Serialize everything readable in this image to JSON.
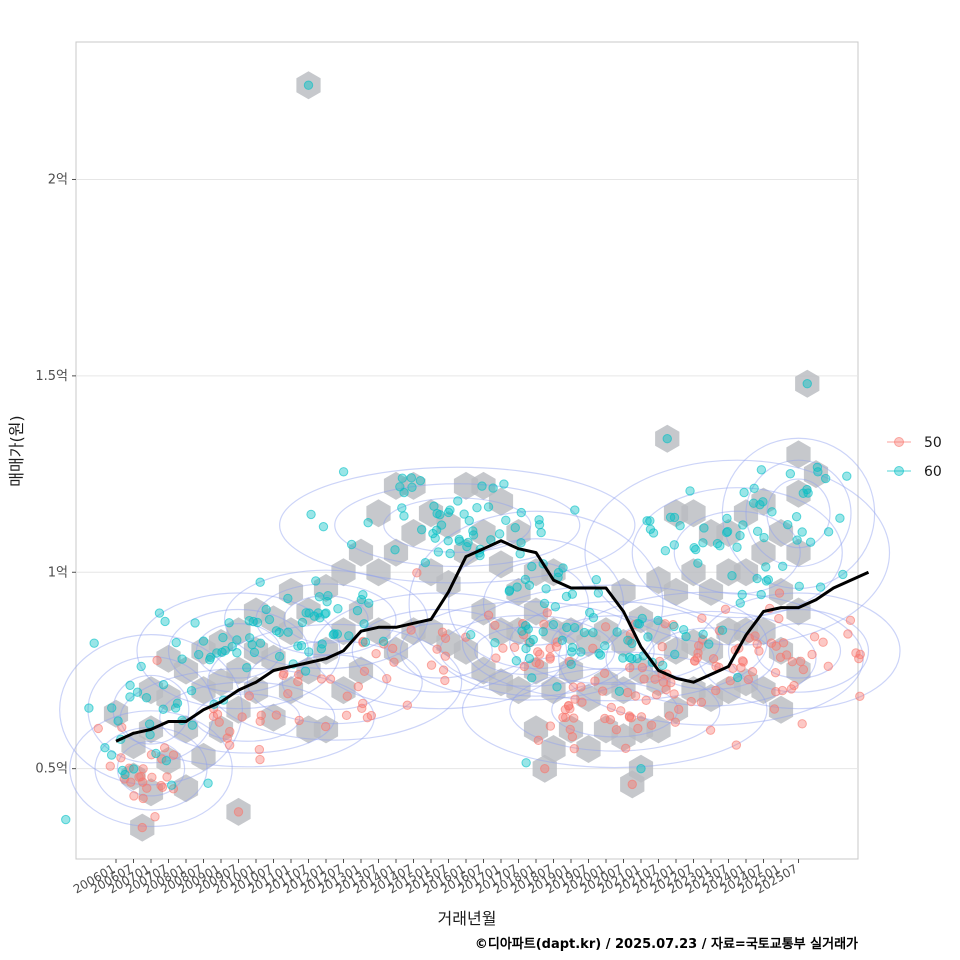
{
  "chart_data": {
    "type": "scatter",
    "title": "",
    "xlabel": "거래년월",
    "ylabel": "매매가(원)",
    "ylim": [
      0.27,
      2.35
    ],
    "y_unit": "억",
    "y_ticks": [
      {
        "value": 0.5,
        "label": "0.5억"
      },
      {
        "value": 1.0,
        "label": "1억"
      },
      {
        "value": 1.5,
        "label": "1.5억"
      },
      {
        "value": 2.0,
        "label": "2억"
      }
    ],
    "x_ticks": [
      "200601",
      "200607",
      "200701",
      "200707",
      "200801",
      "200807",
      "200901",
      "200907",
      "201001",
      "201007",
      "201101",
      "201107",
      "201201",
      "201207",
      "201301",
      "201307",
      "201401",
      "201407",
      "201501",
      "201507",
      "201601",
      "201607",
      "201701",
      "201707",
      "201801",
      "201807",
      "201901",
      "201907",
      "202001",
      "202007",
      "202101",
      "202107",
      "202201",
      "202207",
      "202301",
      "202307",
      "202401",
      "202407",
      "202501",
      "202507"
    ],
    "legend": {
      "title": "",
      "position": "right",
      "entries": [
        {
          "label": "50",
          "color": "#F8766D"
        },
        {
          "label": "60",
          "color": "#00BFC4"
        }
      ]
    },
    "trend_line": {
      "name": "moving-average",
      "color": "#000000",
      "points": [
        [
          0,
          0.57
        ],
        [
          1,
          0.59
        ],
        [
          2,
          0.6
        ],
        [
          3,
          0.62
        ],
        [
          4,
          0.62
        ],
        [
          5,
          0.65
        ],
        [
          6,
          0.67
        ],
        [
          7,
          0.7
        ],
        [
          8,
          0.72
        ],
        [
          9,
          0.75
        ],
        [
          10,
          0.76
        ],
        [
          11,
          0.77
        ],
        [
          12,
          0.78
        ],
        [
          13,
          0.8
        ],
        [
          14,
          0.85
        ],
        [
          15,
          0.86
        ],
        [
          16,
          0.86
        ],
        [
          17,
          0.87
        ],
        [
          18,
          0.88
        ],
        [
          19,
          0.95
        ],
        [
          20,
          1.04
        ],
        [
          21,
          1.06
        ],
        [
          22,
          1.08
        ],
        [
          23,
          1.06
        ],
        [
          24,
          1.05
        ],
        [
          25,
          0.98
        ],
        [
          26,
          0.96
        ],
        [
          27,
          0.96
        ],
        [
          28,
          0.96
        ],
        [
          29,
          0.9
        ],
        [
          30,
          0.81
        ],
        [
          31,
          0.75
        ],
        [
          32,
          0.73
        ],
        [
          33,
          0.72
        ],
        [
          34,
          0.74
        ],
        [
          35,
          0.76
        ],
        [
          36,
          0.84
        ],
        [
          37,
          0.9
        ],
        [
          38,
          0.91
        ],
        [
          39,
          0.91
        ],
        [
          40,
          0.93
        ],
        [
          41,
          0.96
        ],
        [
          42,
          0.98
        ],
        [
          43,
          1.0
        ]
      ]
    },
    "outliers": [
      {
        "series": "60",
        "x": 11,
        "y": 2.24
      },
      {
        "series": "60",
        "x": 39.5,
        "y": 1.48
      },
      {
        "series": "60",
        "x": 31.5,
        "y": 1.34
      },
      {
        "series": "50",
        "x": 7,
        "y": 0.39
      },
      {
        "series": "50",
        "x": 1.5,
        "y": 0.35
      },
      {
        "series": "50",
        "x": 24.5,
        "y": 0.5
      },
      {
        "series": "60",
        "x": 30,
        "y": 0.5
      },
      {
        "series": "50",
        "x": 29.5,
        "y": 0.46
      }
    ],
    "series": [
      {
        "name": "50",
        "color": "#F8766D",
        "clusters": [
          {
            "x": 2,
            "y": 0.5,
            "spread_x": 1.6,
            "spread_y": 0.06,
            "count": 25
          },
          {
            "x": 7.5,
            "y": 0.63,
            "spread_x": 2.5,
            "spread_y": 0.05,
            "count": 18
          },
          {
            "x": 12.5,
            "y": 0.72,
            "spread_x": 2.5,
            "spread_y": 0.06,
            "count": 18
          },
          {
            "x": 18.5,
            "y": 0.8,
            "spread_x": 2.5,
            "spread_y": 0.06,
            "count": 14
          },
          {
            "x": 23.5,
            "y": 0.8,
            "spread_x": 2.5,
            "spread_y": 0.05,
            "count": 22
          },
          {
            "x": 28.5,
            "y": 0.65,
            "spread_x": 3.0,
            "spread_y": 0.06,
            "count": 45
          },
          {
            "x": 34,
            "y": 0.78,
            "spread_x": 3.0,
            "spread_y": 0.07,
            "count": 40
          },
          {
            "x": 39,
            "y": 0.8,
            "spread_x": 2.0,
            "spread_y": 0.06,
            "count": 28
          }
        ]
      },
      {
        "name": "60",
        "color": "#00BFC4",
        "clusters": [
          {
            "x": 2,
            "y": 0.65,
            "spread_x": 1.8,
            "spread_y": 0.08,
            "count": 30
          },
          {
            "x": 7,
            "y": 0.8,
            "spread_x": 2.0,
            "spread_y": 0.06,
            "count": 30
          },
          {
            "x": 12,
            "y": 0.88,
            "spread_x": 2.0,
            "spread_y": 0.05,
            "count": 35
          },
          {
            "x": 19.5,
            "y": 1.12,
            "spread_x": 3.5,
            "spread_y": 0.06,
            "count": 55
          },
          {
            "x": 24,
            "y": 0.92,
            "spread_x": 2.5,
            "spread_y": 0.1,
            "count": 30
          },
          {
            "x": 28.5,
            "y": 0.82,
            "spread_x": 3.0,
            "spread_y": 0.06,
            "count": 40
          },
          {
            "x": 35.5,
            "y": 1.05,
            "spread_x": 3.0,
            "spread_y": 0.1,
            "count": 40
          },
          {
            "x": 39,
            "y": 1.15,
            "spread_x": 1.5,
            "spread_y": 0.08,
            "count": 20
          }
        ]
      }
    ],
    "hex_cells": [
      [
        0,
        0.64
      ],
      [
        1,
        0.56
      ],
      [
        1,
        0.48
      ],
      [
        2,
        0.44
      ],
      [
        2,
        0.6
      ],
      [
        2,
        0.7
      ],
      [
        3,
        0.52
      ],
      [
        3,
        0.68
      ],
      [
        3,
        0.78
      ],
      [
        4,
        0.45
      ],
      [
        4,
        0.6
      ],
      [
        4,
        0.75
      ],
      [
        5,
        0.53
      ],
      [
        5,
        0.7
      ],
      [
        5,
        0.8
      ],
      [
        6,
        0.6
      ],
      [
        6,
        0.72
      ],
      [
        6,
        0.82
      ],
      [
        7,
        0.65
      ],
      [
        7,
        0.75
      ],
      [
        7,
        0.85
      ],
      [
        8,
        0.7
      ],
      [
        8,
        0.8
      ],
      [
        8,
        0.9
      ],
      [
        9,
        0.63
      ],
      [
        9,
        0.78
      ],
      [
        9,
        0.88
      ],
      [
        10,
        0.7
      ],
      [
        10,
        0.85
      ],
      [
        10,
        0.95
      ],
      [
        11,
        0.6
      ],
      [
        11,
        0.75
      ],
      [
        11,
        0.9
      ],
      [
        12,
        0.6
      ],
      [
        12,
        0.8
      ],
      [
        12,
        0.96
      ],
      [
        13,
        0.7
      ],
      [
        13,
        0.85
      ],
      [
        13,
        1.0
      ],
      [
        14,
        0.75
      ],
      [
        14,
        0.9
      ],
      [
        14,
        1.05
      ],
      [
        15,
        0.85
      ],
      [
        15,
        1.0
      ],
      [
        15,
        1.15
      ],
      [
        16,
        0.8
      ],
      [
        16,
        1.05
      ],
      [
        16,
        1.22
      ],
      [
        17,
        0.85
      ],
      [
        17,
        1.1
      ],
      [
        17,
        1.22
      ],
      [
        18,
        0.85
      ],
      [
        18,
        1.0
      ],
      [
        18,
        1.15
      ],
      [
        19,
        0.82
      ],
      [
        19,
        0.97
      ],
      [
        19,
        1.12
      ],
      [
        20,
        0.8
      ],
      [
        20,
        1.05
      ],
      [
        20,
        1.22
      ],
      [
        21,
        0.75
      ],
      [
        21,
        0.9
      ],
      [
        21,
        1.1
      ],
      [
        21,
        1.22
      ],
      [
        22,
        0.72
      ],
      [
        22,
        0.85
      ],
      [
        22,
        1.02
      ],
      [
        22,
        1.18
      ],
      [
        23,
        0.7
      ],
      [
        23,
        0.85
      ],
      [
        23,
        0.95
      ],
      [
        23,
        1.1
      ],
      [
        24,
        0.6
      ],
      [
        24,
        0.75
      ],
      [
        24,
        0.9
      ],
      [
        24,
        1.0
      ],
      [
        25,
        0.55
      ],
      [
        25,
        0.7
      ],
      [
        25,
        0.85
      ],
      [
        25,
        1.0
      ],
      [
        26,
        0.6
      ],
      [
        26,
        0.75
      ],
      [
        26,
        0.85
      ],
      [
        27,
        0.55
      ],
      [
        27,
        0.68
      ],
      [
        27,
        0.82
      ],
      [
        28,
        0.6
      ],
      [
        28,
        0.72
      ],
      [
        28,
        0.85
      ],
      [
        29,
        0.58
      ],
      [
        29,
        0.7
      ],
      [
        29,
        0.82
      ],
      [
        29,
        0.95
      ],
      [
        30,
        0.6
      ],
      [
        30,
        0.75
      ],
      [
        30,
        0.88
      ],
      [
        31,
        0.6
      ],
      [
        31,
        0.72
      ],
      [
        31,
        0.85
      ],
      [
        31,
        0.98
      ],
      [
        32,
        0.65
      ],
      [
        32,
        0.8
      ],
      [
        32,
        0.95
      ],
      [
        32,
        1.15
      ],
      [
        33,
        0.7
      ],
      [
        33,
        0.82
      ],
      [
        33,
        1.0
      ],
      [
        33,
        1.15
      ],
      [
        34,
        0.68
      ],
      [
        34,
        0.8
      ],
      [
        34,
        0.95
      ],
      [
        34,
        1.1
      ],
      [
        35,
        0.7
      ],
      [
        35,
        0.85
      ],
      [
        35,
        1.0
      ],
      [
        35,
        1.1
      ],
      [
        36,
        0.72
      ],
      [
        36,
        0.85
      ],
      [
        36,
        1.0
      ],
      [
        36,
        1.15
      ],
      [
        37,
        0.7
      ],
      [
        37,
        0.85
      ],
      [
        37,
        1.05
      ],
      [
        37,
        1.18
      ],
      [
        38,
        0.65
      ],
      [
        38,
        0.8
      ],
      [
        38,
        0.95
      ],
      [
        38,
        1.1
      ],
      [
        39,
        0.75
      ],
      [
        39,
        0.9
      ],
      [
        39,
        1.05
      ],
      [
        39,
        1.2
      ],
      [
        39,
        1.3
      ],
      [
        40,
        1.25
      ]
    ]
  },
  "caption": "©디아파트(dapt.kr) / 2025.07.23 / 자료=국토교통부 실거래가"
}
